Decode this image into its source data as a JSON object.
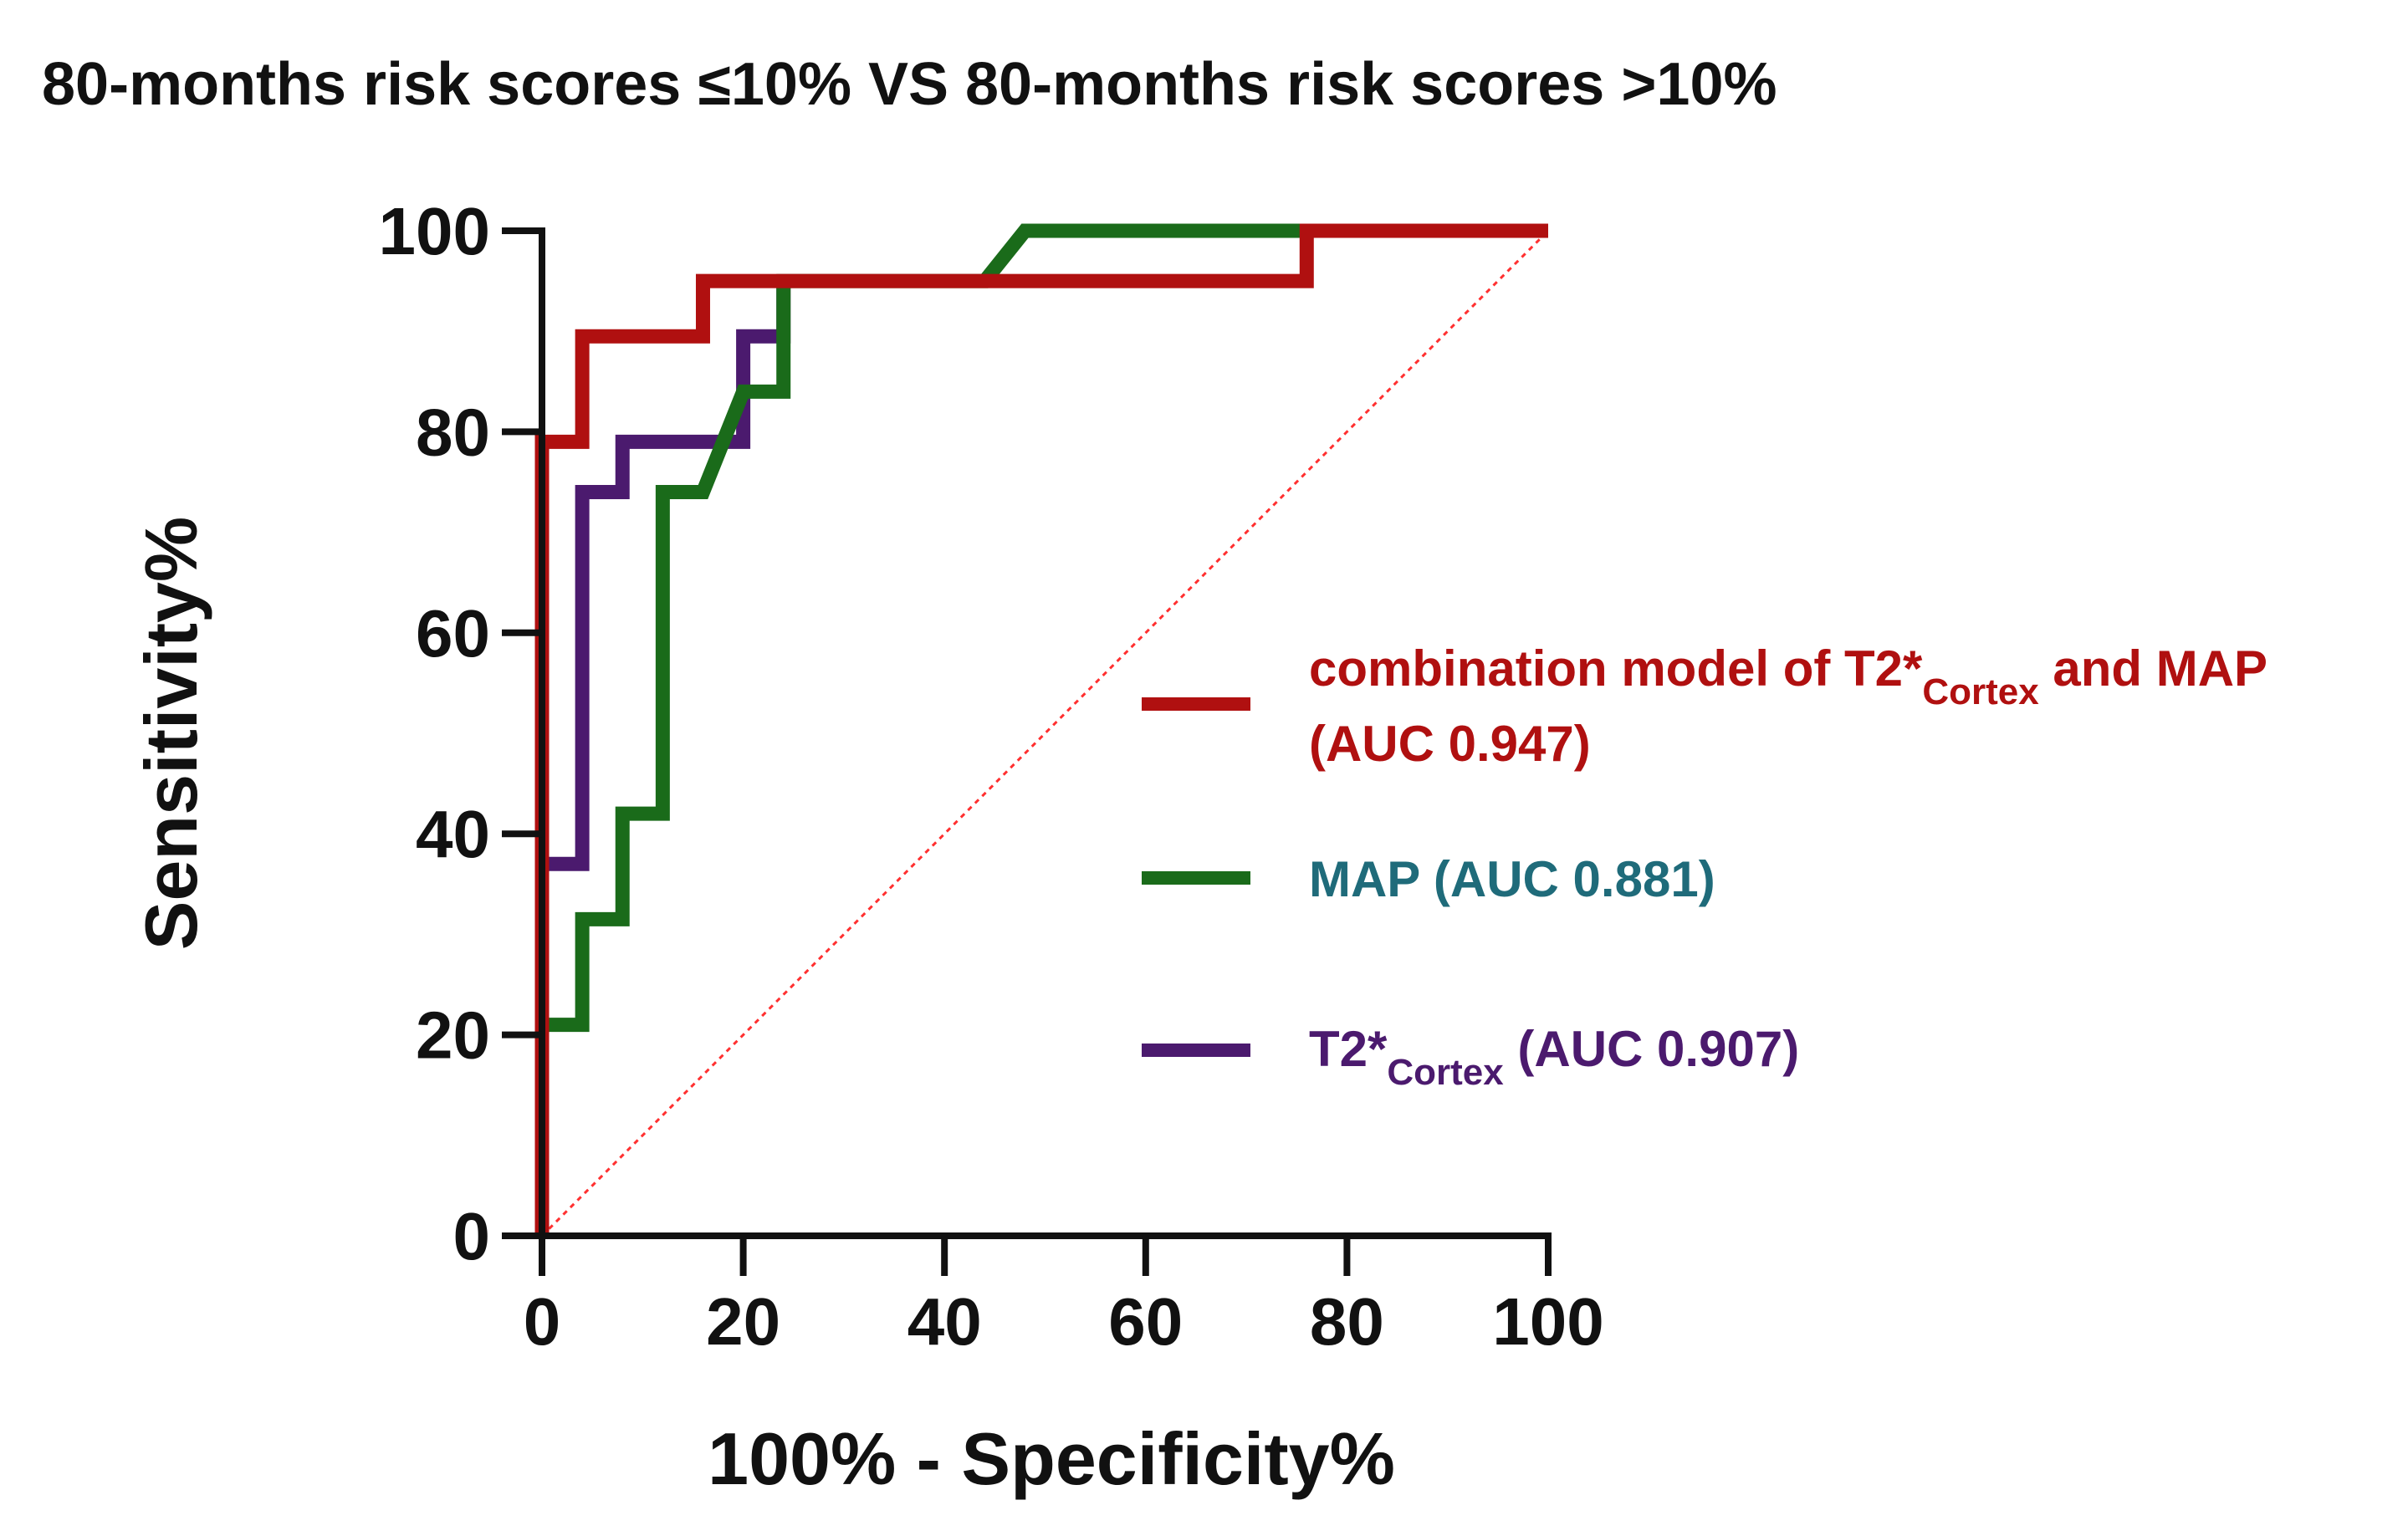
{
  "chart_data": {
    "type": "line",
    "title": "80-months risk scores ≤10% VS 80-months risk scores >10%",
    "xlabel": "100% - Specificity%",
    "ylabel": "Sensitivity%",
    "xlim": [
      0,
      100
    ],
    "ylim": [
      0,
      100
    ],
    "xticks": [
      "0",
      "20",
      "40",
      "60",
      "80",
      "100"
    ],
    "yticks": [
      "0",
      "20",
      "40",
      "60",
      "80",
      "100"
    ],
    "grid": false,
    "legend_position": "right",
    "series": [
      {
        "name": "combination model of T2*Cortex and MAP (AUC 0.947)",
        "legend": {
          "prefix": "combination model of T2*",
          "sub": "Cortex",
          "suffix": " and MAP",
          "line2": "(AUC 0.947)"
        },
        "color": "#b01010",
        "x": [
          0,
          0,
          4,
          4,
          16,
          16,
          76,
          76,
          100
        ],
        "y": [
          0,
          79,
          79,
          89.5,
          89.5,
          95,
          95,
          100,
          100
        ]
      },
      {
        "name": "MAP (AUC 0.881)",
        "legend": {
          "prefix": "MAP (AUC 0.881)",
          "sub": "",
          "suffix": "",
          "line2": ""
        },
        "color": "#1a6b1a",
        "label_color": "#1f6b7a",
        "x": [
          0,
          0,
          4,
          4,
          8,
          8,
          12,
          12,
          16,
          20,
          24,
          24,
          44,
          48,
          100
        ],
        "y": [
          0,
          21,
          21,
          31.5,
          31.5,
          42,
          42,
          74,
          74,
          84,
          84,
          95,
          95,
          100,
          100
        ]
      },
      {
        "name": "T2*Cortex (AUC 0.907)",
        "legend": {
          "prefix": "T2*",
          "sub": "Cortex",
          "suffix": " (AUC 0.907)",
          "line2": ""
        },
        "color": "#4b1a6e",
        "x": [
          0,
          0,
          4,
          4,
          8,
          8,
          20,
          20,
          24,
          24
        ],
        "y": [
          0,
          37,
          37,
          74,
          74,
          79,
          79,
          89.5,
          89.5,
          95
        ]
      }
    ],
    "reference_line": {
      "name": "chance",
      "color": "#ff3030",
      "x": [
        0,
        100
      ],
      "y": [
        0,
        100
      ]
    }
  }
}
